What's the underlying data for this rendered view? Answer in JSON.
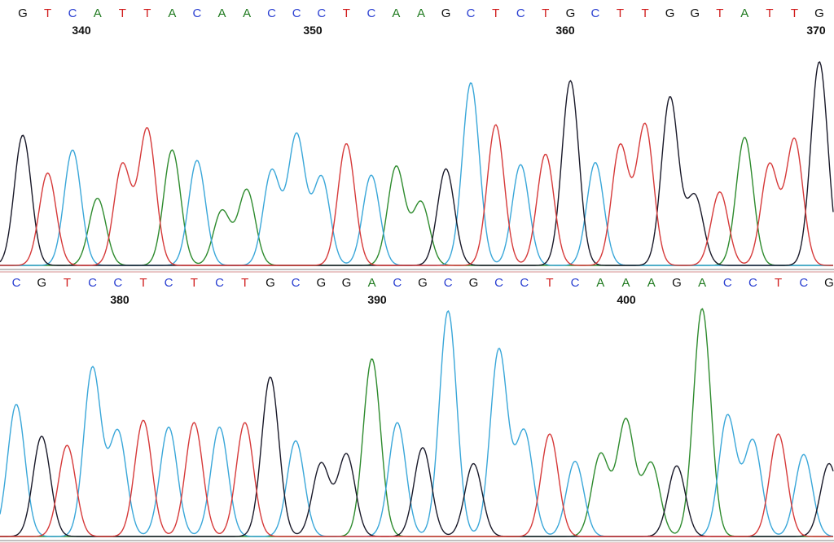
{
  "chart_data": {
    "type": "line",
    "colors": {
      "A": "#1f7a1f",
      "C": "#2a3fd1",
      "G": "#111111",
      "T": "#d11f1f"
    },
    "trace_colors": {
      "A": "#2e8b2e",
      "C": "#3aa7d9",
      "G": "#1a1a2a",
      "T": "#d63a3a"
    },
    "panels": [
      {
        "sequence": "GTCATTACAACCCTCAAGCTCTGCTTGGTATTG",
        "positions": [
          {
            "label": "340",
            "index": 2
          },
          {
            "label": "350",
            "index": 12
          },
          {
            "label": "360",
            "index": 22
          },
          {
            "label": "370",
            "index": 32
          }
        ],
        "peaks": [
          {
            "base": "G",
            "h": 0.62
          },
          {
            "base": "T",
            "h": 0.44
          },
          {
            "base": "C",
            "h": 0.55
          },
          {
            "base": "A",
            "h": 0.32
          },
          {
            "base": "T",
            "h": 0.48
          },
          {
            "base": "T",
            "h": 0.65
          },
          {
            "base": "A",
            "h": 0.55
          },
          {
            "base": "C",
            "h": 0.5
          },
          {
            "base": "A",
            "h": 0.26
          },
          {
            "base": "A",
            "h": 0.36
          },
          {
            "base": "C",
            "h": 0.45
          },
          {
            "base": "C",
            "h": 0.62
          },
          {
            "base": "C",
            "h": 0.42
          },
          {
            "base": "T",
            "h": 0.58
          },
          {
            "base": "C",
            "h": 0.43
          },
          {
            "base": "A",
            "h": 0.47
          },
          {
            "base": "A",
            "h": 0.3
          },
          {
            "base": "G",
            "h": 0.46
          },
          {
            "base": "C",
            "h": 0.87
          },
          {
            "base": "T",
            "h": 0.67
          },
          {
            "base": "C",
            "h": 0.48
          },
          {
            "base": "T",
            "h": 0.53
          },
          {
            "base": "G",
            "h": 0.88
          },
          {
            "base": "C",
            "h": 0.49
          },
          {
            "base": "T",
            "h": 0.57
          },
          {
            "base": "T",
            "h": 0.67
          },
          {
            "base": "G",
            "h": 0.8
          },
          {
            "base": "G",
            "h": 0.33
          },
          {
            "base": "T",
            "h": 0.35
          },
          {
            "base": "A",
            "h": 0.61
          },
          {
            "base": "T",
            "h": 0.48
          },
          {
            "base": "T",
            "h": 0.6
          },
          {
            "base": "G",
            "h": 0.97
          }
        ]
      },
      {
        "sequence": "CGTCCTCTCTGCGGACGCGCCTCAAAGACCTCG",
        "positions": [
          {
            "label": "380",
            "index": 5
          },
          {
            "label": "390",
            "index": 15
          },
          {
            "label": "400",
            "index": 25
          }
        ],
        "peaks": [
          {
            "base": "C",
            "h": 0.58
          },
          {
            "base": "G",
            "h": 0.44
          },
          {
            "base": "T",
            "h": 0.4
          },
          {
            "base": "C",
            "h": 0.74
          },
          {
            "base": "C",
            "h": 0.46
          },
          {
            "base": "T",
            "h": 0.51
          },
          {
            "base": "C",
            "h": 0.48
          },
          {
            "base": "T",
            "h": 0.5
          },
          {
            "base": "C",
            "h": 0.48
          },
          {
            "base": "T",
            "h": 0.5
          },
          {
            "base": "G",
            "h": 0.7
          },
          {
            "base": "C",
            "h": 0.42
          },
          {
            "base": "G",
            "h": 0.32
          },
          {
            "base": "G",
            "h": 0.36
          },
          {
            "base": "A",
            "h": 0.78
          },
          {
            "base": "C",
            "h": 0.5
          },
          {
            "base": "G",
            "h": 0.39
          },
          {
            "base": "C",
            "h": 0.99
          },
          {
            "base": "G",
            "h": 0.32
          },
          {
            "base": "C",
            "h": 0.82
          },
          {
            "base": "C",
            "h": 0.46
          },
          {
            "base": "T",
            "h": 0.45
          },
          {
            "base": "C",
            "h": 0.33
          },
          {
            "base": "A",
            "h": 0.36
          },
          {
            "base": "A",
            "h": 0.51
          },
          {
            "base": "A",
            "h": 0.32
          },
          {
            "base": "G",
            "h": 0.31
          },
          {
            "base": "A",
            "h": 1.0
          },
          {
            "base": "C",
            "h": 0.53
          },
          {
            "base": "C",
            "h": 0.42
          },
          {
            "base": "T",
            "h": 0.45
          },
          {
            "base": "C",
            "h": 0.36
          },
          {
            "base": "G",
            "h": 0.32
          }
        ]
      }
    ]
  }
}
